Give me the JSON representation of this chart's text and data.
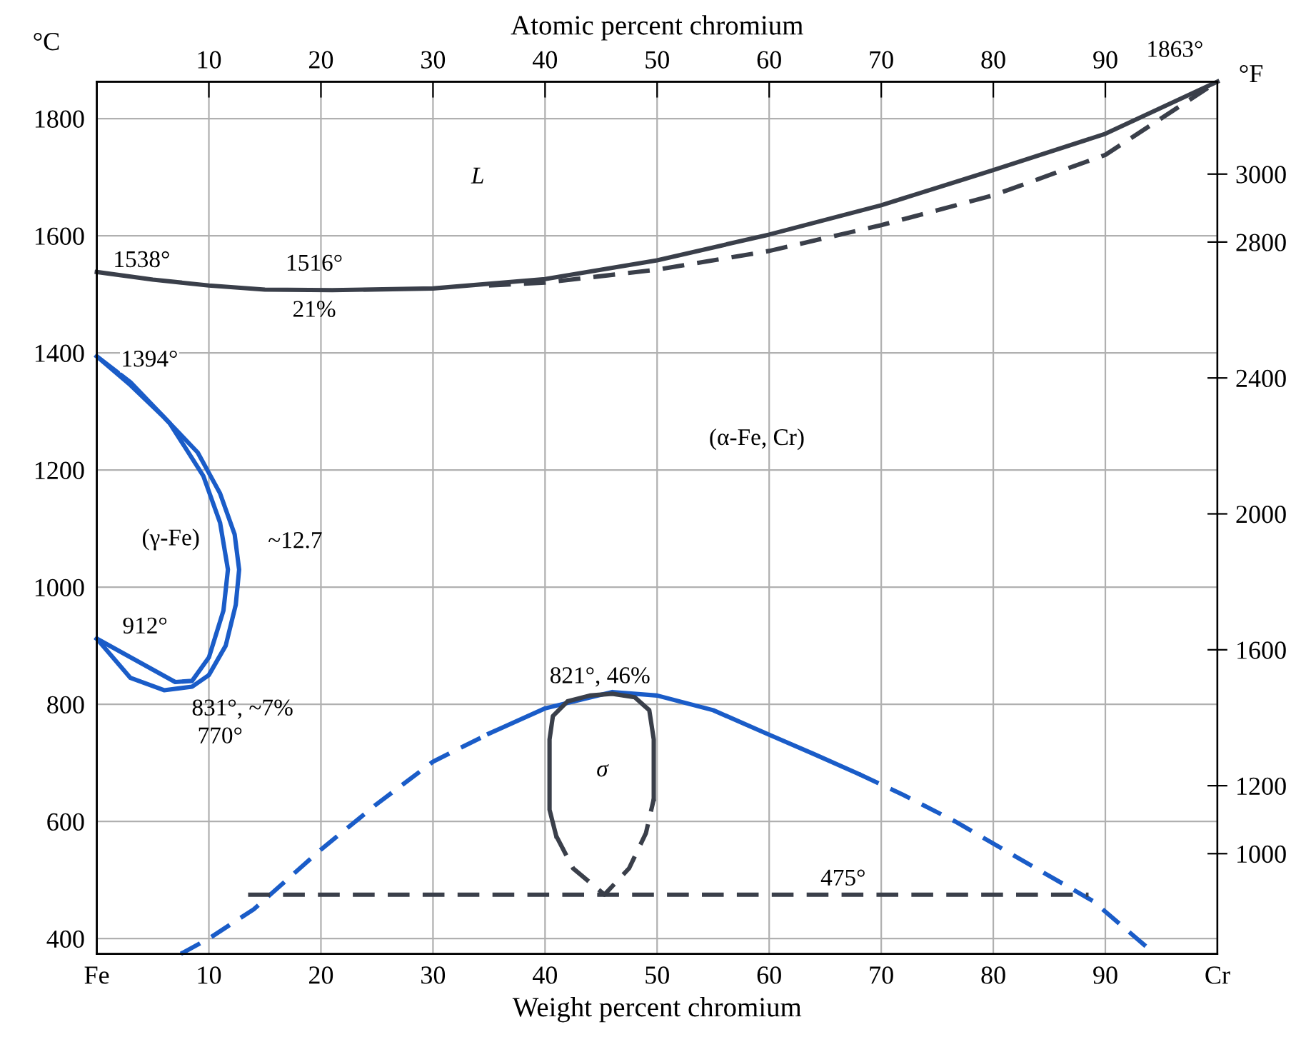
{
  "chart_data": {
    "type": "line",
    "xlabel": "Weight percent chromium",
    "x2label": "Atomic percent chromium",
    "ylabel": "°C",
    "y2label": "°F",
    "xlim": [
      0,
      100
    ],
    "xticks": [
      {
        "value": 0,
        "label": "Fe"
      },
      10,
      20,
      30,
      40,
      50,
      60,
      70,
      80,
      90,
      {
        "value": 100,
        "label": "Cr"
      }
    ],
    "x2lim": [
      0,
      100
    ],
    "x2ticks": [
      10,
      20,
      30,
      40,
      50,
      60,
      70,
      80,
      90
    ],
    "ylim": [
      374,
      1863
    ],
    "yticks": [
      400,
      600,
      800,
      1000,
      1200,
      1400,
      1600,
      1800
    ],
    "y2lim": [
      705.2,
      3272
    ],
    "y2ticks": [
      1000,
      1200,
      1600,
      2000,
      2400,
      2800,
      3000
    ],
    "grid": true,
    "legend": false,
    "marker": "none",
    "series": [
      {
        "color": "#3a3f4a",
        "line_style": "solid",
        "x": [
          0,
          5,
          10,
          15,
          21,
          30,
          40,
          50,
          60,
          70,
          80,
          90,
          100
        ],
        "values": [
          1538,
          1525,
          1515,
          1508,
          1507,
          1510,
          1526,
          1558,
          1602,
          1652,
          1712,
          1774,
          1863
        ]
      },
      {
        "color": "#3a3f4a",
        "line_style": "dashed",
        "x": [
          35,
          40,
          50,
          60,
          70,
          80,
          90,
          100
        ],
        "values": [
          1515,
          1520,
          1542,
          1574,
          1618,
          1669,
          1738,
          1863
        ]
      },
      {
        "color": "#1a5cc8",
        "line_style": "solid",
        "x": [
          0,
          3,
          6,
          9,
          11,
          12.3,
          12.7,
          12.4,
          11.5,
          10,
          8.5,
          6,
          3,
          0
        ],
        "values": [
          1394,
          1345,
          1290,
          1230,
          1160,
          1090,
          1030,
          970,
          900,
          850,
          830,
          824,
          845,
          912
        ]
      },
      {
        "color": "#1a5cc8",
        "line_style": "solid",
        "x": [
          0,
          7,
          8.5,
          10,
          11.3,
          11.7,
          11,
          9.5,
          6.5,
          3,
          0
        ],
        "values": [
          912,
          838,
          840,
          880,
          960,
          1030,
          1110,
          1190,
          1280,
          1350,
          1394
        ]
      },
      {
        "color": "#1a5cc8",
        "line_style": "dashed",
        "x": [
          7.5,
          10,
          14,
          20,
          25,
          30,
          35
        ],
        "values": [
          374,
          400,
          450,
          552,
          630,
          702,
          750
        ]
      },
      {
        "color": "#1a5cc8",
        "line_style": "solid",
        "x": [
          35,
          40,
          46,
          50,
          55,
          60,
          64,
          68
        ],
        "values": [
          750,
          793,
          821,
          815,
          790,
          748,
          715,
          681
        ]
      },
      {
        "color": "#1a5cc8",
        "line_style": "dashed",
        "x": [
          68,
          72,
          76.6,
          82,
          88.9,
          94.4
        ],
        "values": [
          681,
          645,
          600,
          540,
          464,
          374
        ]
      },
      {
        "color": "#3a3f4a",
        "line_style": "solid",
        "x": [
          41,
          40.4,
          40.4,
          40.7,
          42,
          44,
          46,
          48,
          49.3,
          49.7,
          49.7
        ],
        "values": [
          575,
          620,
          740,
          780,
          805,
          815,
          818,
          812,
          790,
          740,
          638
        ]
      },
      {
        "color": "#3a3f4a",
        "line_style": "dashed",
        "x": [
          41,
          42.5,
          45.3,
          47.5,
          49,
          49.7
        ],
        "values": [
          575,
          520,
          475,
          520,
          580,
          638
        ]
      },
      {
        "color": "#3a3f4a",
        "line_style": "dashed",
        "x": [
          13.5,
          88.5
        ],
        "values": [
          475,
          475
        ]
      }
    ],
    "annotations": [
      "L",
      "1538°",
      "1516°",
      "21%",
      "1394°",
      "(γ-Fe)",
      "~12.7",
      "912°",
      "831°, ~7%",
      "770°",
      "(α-Fe, Cr)",
      "821°, 46%",
      "σ",
      "475°",
      "1863°"
    ]
  }
}
